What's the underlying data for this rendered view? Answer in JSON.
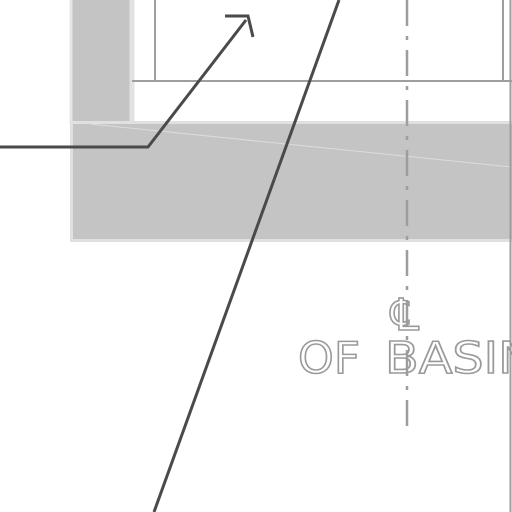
{
  "drawing": {
    "centerline_symbol": "℄",
    "label_prefix": "OF",
    "label_basin": "BASIN",
    "colors": {
      "background": "#ffffff",
      "fill": "#c4c4c4",
      "edge": "#e0e0e0",
      "line": "#9e9e9e",
      "leader": "#4a4a4a",
      "text": "#9a9a9a"
    }
  }
}
